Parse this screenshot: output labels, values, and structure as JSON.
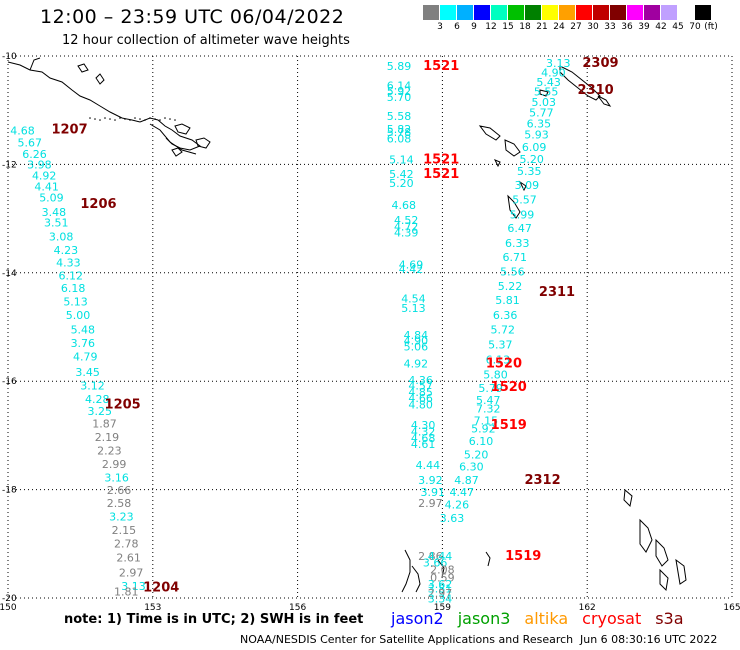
{
  "header": {
    "title": "12:00 – 23:59 UTC 06/04/2022",
    "subtitle": "12 hour collection of altimeter wave heights"
  },
  "colorbar": {
    "unit": "(ft)",
    "colors": [
      "#808080",
      "#00ffff",
      "#00b0ff",
      "#0000ff",
      "#00ffc0",
      "#00c000",
      "#008000",
      "#ffff00",
      "#ffa000",
      "#ff0000",
      "#c00000",
      "#800000",
      "#ff00ff",
      "#a000a0",
      "#c0a0ff",
      "#ffffff",
      "#000000"
    ],
    "labels": [
      "3",
      "6",
      "9",
      "12",
      "15",
      "18",
      "21",
      "24",
      "27",
      "30",
      "33",
      "36",
      "39",
      "42",
      "45",
      "70"
    ]
  },
  "axes": {
    "x_ticks": [
      "150",
      "153",
      "156",
      "159",
      "162",
      "165"
    ],
    "y_ticks": [
      "-10",
      "-12",
      "-14",
      "-16",
      "-18",
      "-20"
    ]
  },
  "chart_data": {
    "type": "scatter",
    "xlim": [
      150,
      165
    ],
    "ylim": [
      -20,
      -10
    ],
    "track_labels": [
      {
        "text": "1207",
        "lon": 150.9,
        "lat": -11.43,
        "color": "#800000"
      },
      {
        "text": "1206",
        "lon": 151.5,
        "lat": -12.8,
        "color": "#800000"
      },
      {
        "text": "1205",
        "lon": 152.0,
        "lat": -16.5,
        "color": "#800000"
      },
      {
        "text": "1204",
        "lon": 152.8,
        "lat": -19.88,
        "color": "#800000"
      },
      {
        "text": "1521",
        "lon": 158.6,
        "lat": -10.26,
        "color": "#ff0000"
      },
      {
        "text": "1521",
        "lon": 158.6,
        "lat": -11.98,
        "color": "#ff0000"
      },
      {
        "text": "1521",
        "lon": 158.6,
        "lat": -12.25,
        "color": "#ff0000"
      },
      {
        "text": "1520",
        "lon": 159.9,
        "lat": -15.75,
        "color": "#ff0000"
      },
      {
        "text": "1520",
        "lon": 160.0,
        "lat": -16.18,
        "color": "#ff0000"
      },
      {
        "text": "1519",
        "lon": 160.0,
        "lat": -16.88,
        "color": "#ff0000"
      },
      {
        "text": "1519",
        "lon": 160.3,
        "lat": -19.3,
        "color": "#ff0000"
      },
      {
        "text": "2309",
        "lon": 161.9,
        "lat": -10.2,
        "color": "#800000"
      },
      {
        "text": "2310",
        "lon": 161.8,
        "lat": -10.7,
        "color": "#800000"
      },
      {
        "text": "2311",
        "lon": 161.0,
        "lat": -14.43,
        "color": "#800000"
      },
      {
        "text": "2312",
        "lon": 160.7,
        "lat": -17.9,
        "color": "#800000"
      }
    ],
    "series": [
      {
        "points": [
          {
            "v": "4.68",
            "lon": 150.3,
            "lat": -11.45,
            "c": "#00e0e0"
          },
          {
            "v": "5.67",
            "lon": 150.45,
            "lat": -11.67,
            "c": "#00e0e0"
          },
          {
            "v": "6.26",
            "lon": 150.55,
            "lat": -11.88,
            "c": "#00e0e0"
          },
          {
            "v": "3.98",
            "lon": 150.65,
            "lat": -12.08,
            "c": "#00e0e0"
          },
          {
            "v": "4.92",
            "lon": 150.75,
            "lat": -12.28,
            "c": "#00e0e0"
          },
          {
            "v": "4.41",
            "lon": 150.8,
            "lat": -12.48,
            "c": "#00e0e0"
          },
          {
            "v": "5.09",
            "lon": 150.9,
            "lat": -12.68,
            "c": "#00e0e0"
          },
          {
            "v": "3.48",
            "lon": 150.95,
            "lat": -12.95,
            "c": "#00e0e0"
          },
          {
            "v": "3.51",
            "lon": 151.0,
            "lat": -13.15,
            "c": "#00e0e0"
          },
          {
            "v": "3.08",
            "lon": 151.1,
            "lat": -13.4,
            "c": "#00e0e0"
          },
          {
            "v": "4.23",
            "lon": 151.2,
            "lat": -13.65,
            "c": "#00e0e0"
          },
          {
            "v": "4.33",
            "lon": 151.25,
            "lat": -13.88,
            "c": "#00e0e0"
          },
          {
            "v": "6.12",
            "lon": 151.3,
            "lat": -14.12,
            "c": "#00e0e0"
          },
          {
            "v": "6.18",
            "lon": 151.35,
            "lat": -14.35,
            "c": "#00e0e0"
          },
          {
            "v": "5.13",
            "lon": 151.4,
            "lat": -14.6,
            "c": "#00e0e0"
          },
          {
            "v": "5.00",
            "lon": 151.45,
            "lat": -14.85,
            "c": "#00e0e0"
          },
          {
            "v": "5.48",
            "lon": 151.55,
            "lat": -15.12,
            "c": "#00e0e0"
          },
          {
            "v": "3.76",
            "lon": 151.55,
            "lat": -15.37,
            "c": "#00e0e0"
          },
          {
            "v": "4.79",
            "lon": 151.6,
            "lat": -15.62,
            "c": "#00e0e0"
          },
          {
            "v": "3.45",
            "lon": 151.65,
            "lat": -15.9,
            "c": "#00e0e0"
          },
          {
            "v": "3.12",
            "lon": 151.75,
            "lat": -16.15,
            "c": "#00e0e0"
          },
          {
            "v": "4.28",
            "lon": 151.85,
            "lat": -16.4,
            "c": "#00e0e0"
          },
          {
            "v": "3.25",
            "lon": 151.9,
            "lat": -16.62,
            "c": "#00e0e0"
          },
          {
            "v": "1.87",
            "lon": 152.0,
            "lat": -16.85,
            "c": "#808080"
          },
          {
            "v": "2.19",
            "lon": 152.05,
            "lat": -17.1,
            "c": "#808080"
          },
          {
            "v": "2.23",
            "lon": 152.1,
            "lat": -17.35,
            "c": "#808080"
          },
          {
            "v": "2.99",
            "lon": 152.2,
            "lat": -17.6,
            "c": "#808080"
          },
          {
            "v": "3.16",
            "lon": 152.25,
            "lat": -17.85,
            "c": "#00e0e0"
          },
          {
            "v": "2.66",
            "lon": 152.3,
            "lat": -18.08,
            "c": "#808080"
          },
          {
            "v": "2.58",
            "lon": 152.3,
            "lat": -18.32,
            "c": "#808080"
          },
          {
            "v": "3.23",
            "lon": 152.35,
            "lat": -18.57,
            "c": "#00e0e0"
          },
          {
            "v": "2.15",
            "lon": 152.4,
            "lat": -18.82,
            "c": "#808080"
          },
          {
            "v": "2.78",
            "lon": 152.45,
            "lat": -19.07,
            "c": "#808080"
          },
          {
            "v": "2.61",
            "lon": 152.5,
            "lat": -19.33,
            "c": "#808080"
          },
          {
            "v": "2.97",
            "lon": 152.55,
            "lat": -19.6,
            "c": "#808080"
          },
          {
            "v": "3.13",
            "lon": 152.6,
            "lat": -19.85,
            "c": "#00e0e0"
          },
          {
            "v": "1.81",
            "lon": 152.45,
            "lat": -19.95,
            "c": "#808080"
          }
        ]
      },
      {
        "points": [
          {
            "v": "5.89",
            "lon": 158.1,
            "lat": -10.26,
            "c": "#00e0e0"
          },
          {
            "v": "6.14",
            "lon": 158.1,
            "lat": -10.62,
            "c": "#00e0e0"
          },
          {
            "v": "5.92",
            "lon": 158.1,
            "lat": -10.72,
            "c": "#00e0e0"
          },
          {
            "v": "5.70",
            "lon": 158.1,
            "lat": -10.83,
            "c": "#00e0e0"
          },
          {
            "v": "5.58",
            "lon": 158.1,
            "lat": -11.18,
            "c": "#00e0e0"
          },
          {
            "v": "5.82",
            "lon": 158.1,
            "lat": -11.42,
            "c": "#00e0e0"
          },
          {
            "v": "5.78",
            "lon": 158.1,
            "lat": -11.48,
            "c": "#00e0e0"
          },
          {
            "v": "6.08",
            "lon": 158.1,
            "lat": -11.6,
            "c": "#00e0e0"
          },
          {
            "v": "5.14",
            "lon": 158.15,
            "lat": -11.98,
            "c": "#00e0e0"
          },
          {
            "v": "5.42",
            "lon": 158.15,
            "lat": -12.25,
            "c": "#00e0e0"
          },
          {
            "v": "5.20",
            "lon": 158.15,
            "lat": -12.42,
            "c": "#00e0e0"
          },
          {
            "v": "4.68",
            "lon": 158.2,
            "lat": -12.82,
            "c": "#00e0e0"
          },
          {
            "v": "4.52",
            "lon": 158.25,
            "lat": -13.1,
            "c": "#00e0e0"
          },
          {
            "v": "4.72",
            "lon": 158.25,
            "lat": -13.22,
            "c": "#00e0e0"
          },
          {
            "v": "4.39",
            "lon": 158.25,
            "lat": -13.33,
            "c": "#00e0e0"
          },
          {
            "v": "4.69",
            "lon": 158.35,
            "lat": -13.92,
            "c": "#00e0e0"
          },
          {
            "v": "4.42",
            "lon": 158.35,
            "lat": -14.0,
            "c": "#00e0e0"
          },
          {
            "v": "4.54",
            "lon": 158.4,
            "lat": -14.55,
            "c": "#00e0e0"
          },
          {
            "v": "5.13",
            "lon": 158.4,
            "lat": -14.72,
            "c": "#00e0e0"
          },
          {
            "v": "4.84",
            "lon": 158.45,
            "lat": -15.22,
            "c": "#00e0e0"
          },
          {
            "v": "4.90",
            "lon": 158.45,
            "lat": -15.32,
            "c": "#00e0e0"
          },
          {
            "v": "5.06",
            "lon": 158.45,
            "lat": -15.43,
            "c": "#00e0e0"
          },
          {
            "v": "4.92",
            "lon": 158.45,
            "lat": -15.75,
            "c": "#00e0e0"
          },
          {
            "v": "4.36",
            "lon": 158.55,
            "lat": -16.05,
            "c": "#00e0e0"
          },
          {
            "v": "4.57",
            "lon": 158.55,
            "lat": -16.15,
            "c": "#00e0e0"
          },
          {
            "v": "4.85",
            "lon": 158.55,
            "lat": -16.27,
            "c": "#00e0e0"
          },
          {
            "v": "4.66",
            "lon": 158.55,
            "lat": -16.38,
            "c": "#00e0e0"
          },
          {
            "v": "4.80",
            "lon": 158.55,
            "lat": -16.5,
            "c": "#00e0e0"
          },
          {
            "v": "4.30",
            "lon": 158.6,
            "lat": -16.88,
            "c": "#00e0e0"
          },
          {
            "v": "4.32",
            "lon": 158.6,
            "lat": -17.0,
            "c": "#00e0e0"
          },
          {
            "v": "4.68",
            "lon": 158.6,
            "lat": -17.12,
            "c": "#00e0e0"
          },
          {
            "v": "4.61",
            "lon": 158.6,
            "lat": -17.23,
            "c": "#00e0e0"
          },
          {
            "v": "4.44",
            "lon": 158.7,
            "lat": -17.62,
            "c": "#00e0e0"
          },
          {
            "v": "3.92",
            "lon": 158.75,
            "lat": -17.9,
            "c": "#00e0e0"
          },
          {
            "v": "3.91",
            "lon": 158.8,
            "lat": -18.12,
            "c": "#00e0e0"
          },
          {
            "v": "2.97",
            "lon": 158.75,
            "lat": -18.32,
            "c": "#808080"
          },
          {
            "v": "2.86",
            "lon": 158.75,
            "lat": -19.3,
            "c": "#808080"
          },
          {
            "v": "4.44",
            "lon": 158.95,
            "lat": -19.3,
            "c": "#00e0e0"
          },
          {
            "v": "3.66",
            "lon": 158.85,
            "lat": -19.42,
            "c": "#00e0e0"
          },
          {
            "v": "2.08",
            "lon": 159.0,
            "lat": -19.55,
            "c": "#808080"
          },
          {
            "v": "0.59",
            "lon": 159.0,
            "lat": -19.7,
            "c": "#808080"
          },
          {
            "v": "3.62",
            "lon": 158.95,
            "lat": -19.82,
            "c": "#00e0e0"
          },
          {
            "v": "3.81",
            "lon": 158.95,
            "lat": -19.9,
            "c": "#00e0e0"
          },
          {
            "v": "2.97",
            "lon": 158.95,
            "lat": -19.98,
            "c": "#808080"
          },
          {
            "v": "3.34",
            "lon": 158.95,
            "lat": -20.08,
            "c": "#00e0e0"
          }
        ]
      },
      {
        "points": [
          {
            "v": "3.13",
            "lon": 161.4,
            "lat": -10.2,
            "c": "#00e0e0"
          },
          {
            "v": "4.90",
            "lon": 161.3,
            "lat": -10.38,
            "c": "#00e0e0"
          },
          {
            "v": "5.43",
            "lon": 161.2,
            "lat": -10.55,
            "c": "#00e0e0"
          },
          {
            "v": "5.55",
            "lon": 161.15,
            "lat": -10.73,
            "c": "#00e0e0"
          },
          {
            "v": "5.03",
            "lon": 161.1,
            "lat": -10.92,
            "c": "#00e0e0"
          },
          {
            "v": "5.77",
            "lon": 161.05,
            "lat": -11.12,
            "c": "#00e0e0"
          },
          {
            "v": "6.35",
            "lon": 161.0,
            "lat": -11.32,
            "c": "#00e0e0"
          },
          {
            "v": "5.93",
            "lon": 160.95,
            "lat": -11.52,
            "c": "#00e0e0"
          },
          {
            "v": "6.09",
            "lon": 160.9,
            "lat": -11.75,
            "c": "#00e0e0"
          },
          {
            "v": "5.20",
            "lon": 160.85,
            "lat": -11.97,
            "c": "#00e0e0"
          },
          {
            "v": "5.35",
            "lon": 160.8,
            "lat": -12.2,
            "c": "#00e0e0"
          },
          {
            "v": "3.09",
            "lon": 160.75,
            "lat": -12.45,
            "c": "#00e0e0"
          },
          {
            "v": "5.57",
            "lon": 160.7,
            "lat": -12.72,
            "c": "#00e0e0"
          },
          {
            "v": "5.99",
            "lon": 160.65,
            "lat": -13.0,
            "c": "#00e0e0"
          },
          {
            "v": "6.47",
            "lon": 160.6,
            "lat": -13.25,
            "c": "#00e0e0"
          },
          {
            "v": "6.33",
            "lon": 160.55,
            "lat": -13.52,
            "c": "#00e0e0"
          },
          {
            "v": "6.71",
            "lon": 160.5,
            "lat": -13.78,
            "c": "#00e0e0"
          },
          {
            "v": "5.56",
            "lon": 160.45,
            "lat": -14.05,
            "c": "#00e0e0"
          },
          {
            "v": "5.22",
            "lon": 160.4,
            "lat": -14.32,
            "c": "#00e0e0"
          },
          {
            "v": "5.81",
            "lon": 160.35,
            "lat": -14.58,
            "c": "#00e0e0"
          },
          {
            "v": "6.36",
            "lon": 160.3,
            "lat": -14.85,
            "c": "#00e0e0"
          },
          {
            "v": "5.72",
            "lon": 160.25,
            "lat": -15.12,
            "c": "#00e0e0"
          },
          {
            "v": "5.37",
            "lon": 160.2,
            "lat": -15.4,
            "c": "#00e0e0"
          },
          {
            "v": "6.13",
            "lon": 160.15,
            "lat": -15.67,
            "c": "#00e0e0"
          },
          {
            "v": "5.80",
            "lon": 160.1,
            "lat": -15.95,
            "c": "#00e0e0"
          },
          {
            "v": "5.79",
            "lon": 160.0,
            "lat": -16.2,
            "c": "#00e0e0"
          },
          {
            "v": "5.47",
            "lon": 159.95,
            "lat": -16.42,
            "c": "#00e0e0"
          },
          {
            "v": "7.32",
            "lon": 159.95,
            "lat": -16.58,
            "c": "#00e0e0"
          },
          {
            "v": "7.15",
            "lon": 159.9,
            "lat": -16.8,
            "c": "#00e0e0"
          },
          {
            "v": "5.92",
            "lon": 159.85,
            "lat": -16.95,
            "c": "#00e0e0"
          },
          {
            "v": "6.10",
            "lon": 159.8,
            "lat": -17.18,
            "c": "#00e0e0"
          },
          {
            "v": "5.20",
            "lon": 159.7,
            "lat": -17.43,
            "c": "#00e0e0"
          },
          {
            "v": "6.30",
            "lon": 159.6,
            "lat": -17.65,
            "c": "#00e0e0"
          },
          {
            "v": "4.87",
            "lon": 159.5,
            "lat": -17.9,
            "c": "#00e0e0"
          },
          {
            "v": "4.47",
            "lon": 159.4,
            "lat": -18.12,
            "c": "#00e0e0"
          },
          {
            "v": "4.26",
            "lon": 159.3,
            "lat": -18.35,
            "c": "#00e0e0"
          },
          {
            "v": "3.63",
            "lon": 159.2,
            "lat": -18.6,
            "c": "#00e0e0"
          }
        ]
      }
    ]
  },
  "legend": {
    "satellites": [
      {
        "name": "jason2",
        "color": "#0000ff"
      },
      {
        "name": "jason3",
        "color": "#00a000"
      },
      {
        "name": "altika",
        "color": "#ff9900"
      },
      {
        "name": "cryosat",
        "color": "#ff0000"
      },
      {
        "name": "s3a",
        "color": "#800000"
      }
    ]
  },
  "footer": {
    "note": "note: 1) Time is in UTC; 2) SWH is in feet",
    "credit": "NOAA/NESDIS Center for Satellite Applications and Research",
    "timestamp": "Jun  6 08:30:16 UTC 2022"
  }
}
